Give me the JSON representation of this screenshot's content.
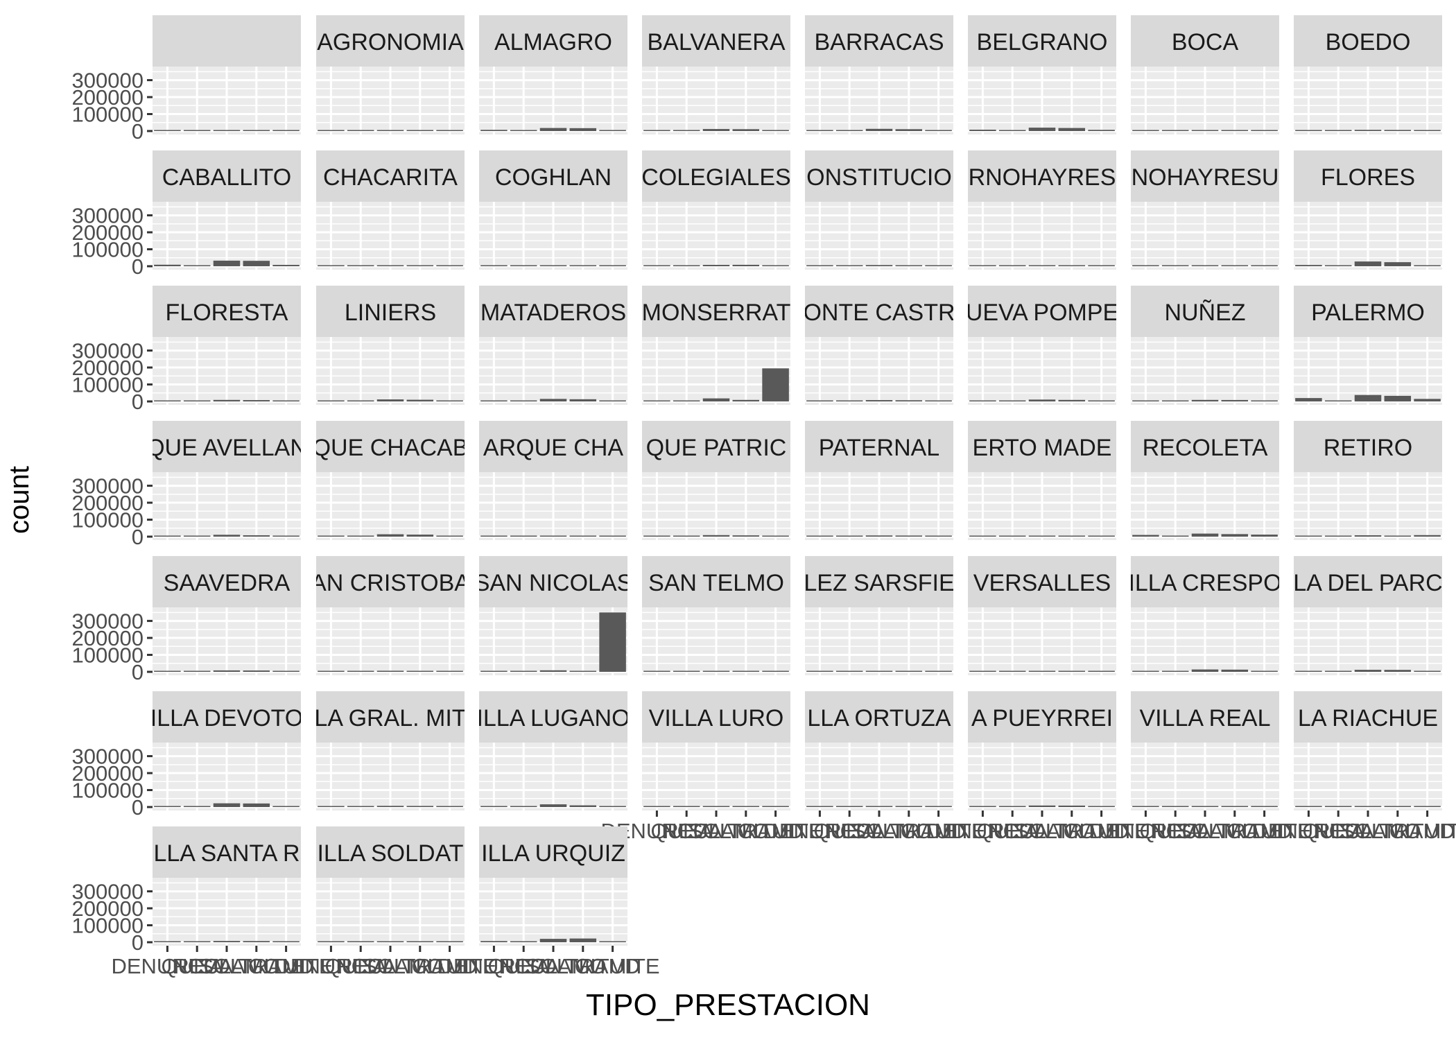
{
  "chart_data": {
    "type": "bar",
    "facet_by": "BARRIO",
    "xlabel": "TIPO_PRESTACION",
    "ylabel": "count",
    "ylim": [
      0,
      380000
    ],
    "y_ticks": [
      0,
      100000,
      200000,
      300000
    ],
    "y_tick_labels": [
      "0",
      "100000",
      "200000",
      "300000"
    ],
    "categories": [
      "DENUNCIA",
      "QUEJA",
      "RECLAMO",
      "SOLICITUD",
      "TRAMITE"
    ],
    "x_tick_labels_visible": [
      "DENUNCIA",
      "QUEJA",
      "RECLAMO",
      "SOLICITUD",
      "TRAMITE"
    ],
    "facets": [
      {
        "label": "",
        "values": [
          500,
          200,
          800,
          600,
          3500
        ]
      },
      {
        "label": "AGRONOMIA",
        "values": [
          1200,
          300,
          4500,
          4000,
          900
        ]
      },
      {
        "label": "ALMAGRO",
        "values": [
          7000,
          1500,
          18000,
          17000,
          5000
        ]
      },
      {
        "label": "BALVANERA",
        "values": [
          6000,
          1200,
          12000,
          11000,
          5000
        ]
      },
      {
        "label": "BARRACAS",
        "values": [
          5000,
          1000,
          13000,
          11000,
          4000
        ]
      },
      {
        "label": "BELGRANO",
        "values": [
          8000,
          1800,
          20000,
          18000,
          7000
        ]
      },
      {
        "label": "BOCA",
        "values": [
          2500,
          500,
          6000,
          5000,
          2000
        ]
      },
      {
        "label": "BOEDO",
        "values": [
          2500,
          600,
          7000,
          6500,
          2000
        ]
      },
      {
        "label": "CABALLITO",
        "values": [
          9000,
          2200,
          33000,
          32000,
          8000
        ]
      },
      {
        "label": "CHACARITA",
        "values": [
          2000,
          400,
          5500,
          5000,
          1500
        ]
      },
      {
        "label": "COGHLAN",
        "values": [
          1000,
          300,
          4000,
          3800,
          900
        ]
      },
      {
        "label": "COLEGIALES",
        "values": [
          2800,
          600,
          8000,
          8500,
          2500
        ]
      },
      {
        "label": "CONSTITUCION",
        "values": [
          3500,
          800,
          7000,
          5500,
          3000
        ]
      },
      {
        "label": "CORNOHAYRESULTADOS",
        "values": [
          300,
          100,
          800,
          700,
          200
        ]
      },
      {
        "label": "CNOHAYRESULTADOS",
        "values": [
          300,
          100,
          800,
          700,
          200
        ]
      },
      {
        "label": "FLORES",
        "values": [
          7500,
          1800,
          28000,
          24000,
          6000
        ]
      },
      {
        "label": "FLORESTA",
        "values": [
          3000,
          700,
          9000,
          8000,
          2500
        ]
      },
      {
        "label": "LINIERS",
        "values": [
          2800,
          700,
          12000,
          10000,
          2500
        ]
      },
      {
        "label": "MATADEROS",
        "values": [
          3500,
          800,
          15000,
          13000,
          3000
        ]
      },
      {
        "label": "MONSERRAT",
        "values": [
          5000,
          1500,
          18000,
          9000,
          195000
        ]
      },
      {
        "label": "MONTE CASTRO",
        "values": [
          2000,
          500,
          8000,
          7000,
          1800
        ]
      },
      {
        "label": "NUEVA POMPEYA",
        "values": [
          2200,
          500,
          11000,
          9000,
          2000
        ]
      },
      {
        "label": "NUÑEZ",
        "values": [
          2500,
          600,
          9000,
          8500,
          2500
        ]
      },
      {
        "label": "PALERMO",
        "values": [
          20000,
          4000,
          38000,
          33000,
          15000
        ]
      },
      {
        "label": "PARQUE AVELLANEDA",
        "values": [
          2000,
          500,
          11000,
          8000,
          2000
        ]
      },
      {
        "label": "PARQUE CHACABUCO",
        "values": [
          3000,
          700,
          14000,
          12000,
          2800
        ]
      },
      {
        "label": "PARQUE CHAS",
        "values": [
          1200,
          300,
          4500,
          4200,
          1000
        ]
      },
      {
        "label": "PARQUE PATRICIOS",
        "values": [
          2200,
          500,
          9000,
          7500,
          2000
        ]
      },
      {
        "label": "PATERNAL",
        "values": [
          1800,
          400,
          7000,
          6500,
          1600
        ]
      },
      {
        "label": "PUERTO MADERO",
        "values": [
          1500,
          400,
          3000,
          2500,
          1500
        ]
      },
      {
        "label": "RECOLETA",
        "values": [
          10000,
          2500,
          18000,
          15000,
          12000
        ]
      },
      {
        "label": "RETIRO",
        "values": [
          6000,
          1500,
          8000,
          4000,
          9000
        ]
      },
      {
        "label": "SAAVEDRA",
        "values": [
          2500,
          600,
          8500,
          8000,
          2200
        ]
      },
      {
        "label": "SAN CRISTOBAL",
        "values": [
          2500,
          600,
          6500,
          6000,
          2200
        ]
      },
      {
        "label": "SAN NICOLAS",
        "values": [
          6000,
          2000,
          9000,
          4000,
          350000
        ]
      },
      {
        "label": "SAN TELMO",
        "values": [
          1800,
          500,
          3500,
          2500,
          1500
        ]
      },
      {
        "label": "VELEZ SARSFIELD",
        "values": [
          1500,
          400,
          6000,
          5500,
          1400
        ]
      },
      {
        "label": "VERSALLES",
        "values": [
          1200,
          300,
          4500,
          4000,
          1000
        ]
      },
      {
        "label": "VILLA CRESPO",
        "values": [
          5000,
          1200,
          14000,
          13000,
          4000
        ]
      },
      {
        "label": "VILLA DEL PARQUE",
        "values": [
          4000,
          900,
          12000,
          11500,
          3500
        ]
      },
      {
        "label": "VILLA DEVOTO",
        "values": [
          6000,
          1400,
          22000,
          21000,
          5000
        ]
      },
      {
        "label": "VILLA GRAL. MITRE",
        "values": [
          2000,
          500,
          7000,
          6500,
          1800
        ]
      },
      {
        "label": "VILLA LUGANO",
        "values": [
          3500,
          900,
          16000,
          10000,
          3000
        ]
      },
      {
        "label": "VILLA LURO",
        "values": [
          1500,
          400,
          6000,
          5500,
          1300
        ]
      },
      {
        "label": "VILLA ORTUZAR",
        "values": [
          1500,
          400,
          6000,
          5500,
          1300
        ]
      },
      {
        "label": "VILLA PUEYRREDON",
        "values": [
          2200,
          500,
          9000,
          8500,
          2000
        ]
      },
      {
        "label": "VILLA REAL",
        "values": [
          800,
          200,
          3500,
          3000,
          700
        ]
      },
      {
        "label": "VILLA RIACHUELO",
        "values": [
          800,
          200,
          3000,
          2800,
          700
        ]
      },
      {
        "label": "VILLA SANTA RITA",
        "values": [
          1800,
          500,
          7500,
          7000,
          1600
        ]
      },
      {
        "label": "VILLA SOLDATI",
        "values": [
          1500,
          400,
          5500,
          4500,
          1400
        ]
      },
      {
        "label": "VILLA URQUIZA",
        "values": [
          7000,
          1500,
          20000,
          22000,
          6000
        ]
      }
    ],
    "facet_strip_text": [
      "",
      "AGRONOMIA",
      "ALMAGRO",
      "BALVANERA",
      "BARRACAS",
      "BELGRANO",
      "BOCA",
      "BOEDO",
      "CABALLITO",
      "CHACARITA",
      "COGHLAN",
      "COLEGIALES",
      "ONSTITUCIO",
      "RNOHAYRES",
      "NOHAYRESU",
      "FLORES",
      "FLORESTA",
      "LINIERS",
      "MATADEROS",
      "MONSERRAT",
      "ONTE CASTR",
      "UEVA POMPE",
      "NUÑEZ",
      "PALERMO",
      "QUE AVELLAN",
      "QUE CHACAB",
      "ARQUE CHA",
      "QUE PATRIC",
      "PATERNAL",
      "ERTO MADE",
      "RECOLETA",
      "RETIRO",
      "SAAVEDRA",
      "AN CRISTOBA",
      "SAN NICOLAS",
      "SAN TELMO",
      "LEZ SARSFIE",
      "VERSALLES",
      "ILLA CRESPO",
      "LA DEL PARC",
      "ILLA DEVOTO",
      "LA GRAL. MIT",
      "ILLA LUGANO",
      "VILLA LURO",
      "LLA ORTUZA",
      "A PUEYRREI",
      "VILLA REAL",
      "LA RIACHUE",
      "LLA SANTA R",
      "ILLA SOLDAT",
      "ILLA URQUIZ"
    ],
    "grid": true,
    "bar_color": "#595959",
    "panel_background": "#ebebeb",
    "strip_background": "#d9d9d9",
    "grid_color": "#ffffff",
    "columns": 8,
    "rows": 7
  }
}
